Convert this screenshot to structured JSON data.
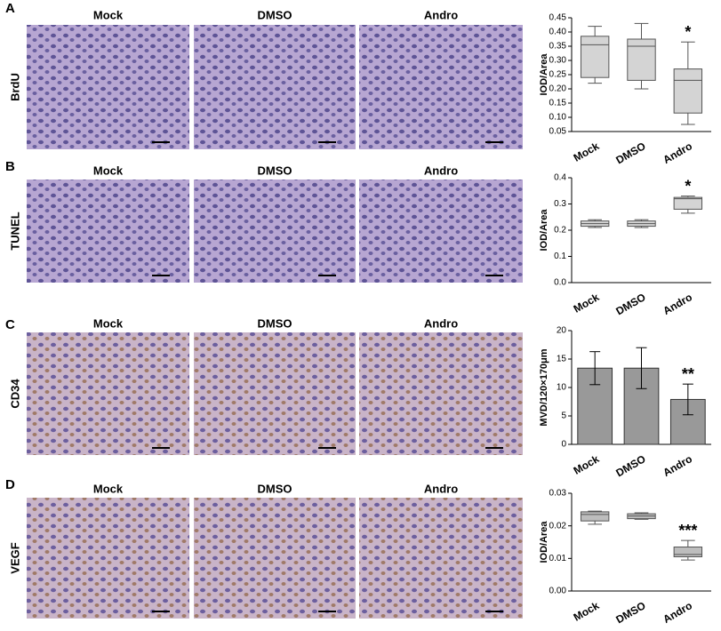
{
  "panels": [
    {
      "letter": "A",
      "row_label": "BrdU",
      "column_labels": [
        "Mock",
        "DMSO",
        "Andro"
      ]
    },
    {
      "letter": "B",
      "row_label": "TUNEL",
      "column_labels": [
        "Mock",
        "DMSO",
        "Andro"
      ]
    },
    {
      "letter": "C",
      "row_label": "CD34",
      "column_labels": [
        "Mock",
        "DMSO",
        "Andro"
      ]
    },
    {
      "letter": "D",
      "row_label": "VEGF",
      "column_labels": [
        "Mock",
        "DMSO",
        "Andro"
      ]
    }
  ],
  "chart_data": [
    {
      "type": "box",
      "y_label": "IOD/Area",
      "categories": [
        "Mock",
        "DMSO",
        "Andro"
      ],
      "color": "#d4d4d4",
      "min": [
        0.22,
        0.2,
        0.075
      ],
      "q1": [
        0.24,
        0.23,
        0.115
      ],
      "median": [
        0.355,
        0.35,
        0.23
      ],
      "q3": [
        0.385,
        0.375,
        0.27
      ],
      "max": [
        0.42,
        0.43,
        0.365
      ],
      "ylim": [
        0.05,
        0.45
      ],
      "yticks": [
        0.05,
        {
          "value": 0.1,
          "label": "0.10"
        },
        0.15,
        {
          "value": 0.2,
          "label": "0.20"
        },
        0.25,
        {
          "value": 0.3,
          "label": "0.30"
        },
        0.35,
        {
          "value": 0.4,
          "label": "0.40"
        },
        0.45
      ],
      "annotation": "*"
    },
    {
      "type": "box",
      "y_label": "IOD/Area",
      "categories": [
        "Mock",
        "DMSO",
        "Andro"
      ],
      "color": "#d4d4d4",
      "min": [
        0.21,
        0.21,
        0.265
      ],
      "q1": [
        0.215,
        0.215,
        0.28
      ],
      "median": [
        0.225,
        0.225,
        0.32
      ],
      "q3": [
        0.235,
        0.235,
        0.325
      ],
      "max": [
        0.24,
        0.24,
        0.33
      ],
      "ylim": [
        0,
        0.4
      ],
      "yticks": [
        {
          "value": 0,
          "label": "0.0"
        },
        0.1,
        0.2,
        0.3,
        0.4
      ],
      "annotation": "*"
    },
    {
      "type": "bar",
      "y_label": "MVD/120×170μm",
      "categories": [
        "Mock",
        "DMSO",
        "Andro"
      ],
      "color": "#999999",
      "values": [
        13.4,
        13.4,
        7.9
      ],
      "errors": [
        2.9,
        3.6,
        2.7
      ],
      "ylim": [
        0,
        20
      ],
      "yticks": [
        0,
        5,
        10,
        15,
        20
      ],
      "annotation": "**"
    },
    {
      "type": "box",
      "y_label": "IOD/Area",
      "categories": [
        "Mock",
        "DMSO",
        "Andro"
      ],
      "color": "#bdbdbd",
      "min": [
        0.0205,
        0.022,
        0.0095
      ],
      "q1": [
        0.0215,
        0.0222,
        0.0105
      ],
      "median": [
        0.0235,
        0.023,
        0.0112
      ],
      "q3": [
        0.0243,
        0.0237,
        0.0135
      ],
      "max": [
        0.0245,
        0.024,
        0.0155
      ],
      "ylim": [
        0,
        0.03
      ],
      "yticks": [
        {
          "value": 0,
          "label": "0.00"
        },
        0.01,
        0.02,
        0.03
      ],
      "annotation": "***"
    }
  ]
}
